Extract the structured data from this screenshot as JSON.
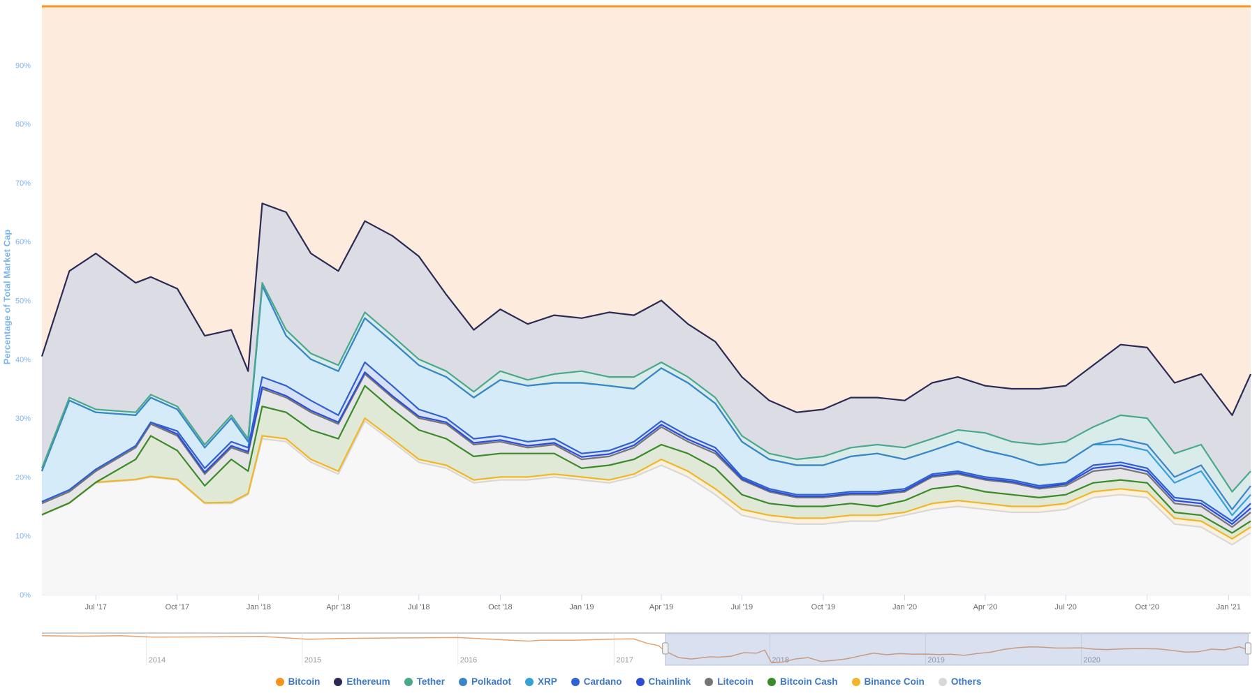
{
  "chart_data": {
    "type": "area",
    "stacking": "percent",
    "title": "",
    "xlabel": "",
    "ylabel": "Percentage of Total Market Cap",
    "ylim": [
      0,
      100
    ],
    "yticks": [
      "0%",
      "10%",
      "20%",
      "30%",
      "40%",
      "50%",
      "60%",
      "70%",
      "80%",
      "90%"
    ],
    "xticks": [
      {
        "date": "2017-07-01",
        "label": "Jul '17"
      },
      {
        "date": "2017-10-01",
        "label": "Oct '17"
      },
      {
        "date": "2018-01-01",
        "label": "Jan '18"
      },
      {
        "date": "2018-04-01",
        "label": "Apr '18"
      },
      {
        "date": "2018-07-01",
        "label": "Jul '18"
      },
      {
        "date": "2018-10-01",
        "label": "Oct '18"
      },
      {
        "date": "2019-01-01",
        "label": "Jan '19"
      },
      {
        "date": "2019-04-01",
        "label": "Apr '19"
      },
      {
        "date": "2019-07-01",
        "label": "Jul '19"
      },
      {
        "date": "2019-10-01",
        "label": "Oct '19"
      },
      {
        "date": "2020-01-01",
        "label": "Jan '20"
      },
      {
        "date": "2020-04-01",
        "label": "Apr '20"
      },
      {
        "date": "2020-07-01",
        "label": "Jul '20"
      },
      {
        "date": "2020-10-01",
        "label": "Oct '20"
      },
      {
        "date": "2021-01-01",
        "label": "Jan '21"
      }
    ],
    "xrange": [
      "2017-05-01",
      "2021-01-26"
    ],
    "legend_position": "bottom-center",
    "grid": true,
    "x": [
      "2017-05-01",
      "2017-06-01",
      "2017-07-01",
      "2017-08-15",
      "2017-09-01",
      "2017-10-01",
      "2017-11-01",
      "2017-12-01",
      "2017-12-20",
      "2018-01-05",
      "2018-02-01",
      "2018-03-01",
      "2018-04-01",
      "2018-05-01",
      "2018-06-01",
      "2018-07-01",
      "2018-08-01",
      "2018-09-01",
      "2018-10-01",
      "2018-11-01",
      "2018-12-01",
      "2019-01-01",
      "2019-02-01",
      "2019-03-01",
      "2019-04-01",
      "2019-05-01",
      "2019-06-01",
      "2019-07-01",
      "2019-08-01",
      "2019-09-01",
      "2019-10-01",
      "2019-11-01",
      "2019-12-01",
      "2020-01-01",
      "2020-02-01",
      "2020-03-01",
      "2020-04-01",
      "2020-05-01",
      "2020-06-01",
      "2020-07-01",
      "2020-08-01",
      "2020-09-01",
      "2020-10-01",
      "2020-11-01",
      "2020-12-01",
      "2021-01-05",
      "2021-01-26"
    ],
    "series": [
      {
        "name": "Bitcoin",
        "color": "#f7931a",
        "fill": "#fdebdd",
        "values": [
          59.5,
          45,
          42,
          47,
          46,
          48,
          56,
          55,
          62,
          33.5,
          35,
          42,
          45,
          36.5,
          39,
          42.5,
          49,
          55,
          51.5,
          54,
          52.5,
          53,
          52,
          52.5,
          50,
          54,
          57,
          63,
          67,
          69,
          68.5,
          66.5,
          66.5,
          67,
          64,
          63,
          64.5,
          65,
          65,
          64.5,
          61,
          57.5,
          58,
          64,
          62.5,
          69.5,
          62.5
        ]
      },
      {
        "name": "Ethereum",
        "color": "#2b2a55",
        "fill": "#dcdce5",
        "values": [
          19,
          21.5,
          26.5,
          22,
          20,
          20,
          18.5,
          14.5,
          11.5,
          13.5,
          20,
          17,
          16,
          15.5,
          17,
          17.5,
          13,
          10.5,
          10.5,
          9.5,
          10,
          9,
          11,
          10.5,
          10.5,
          9,
          9.5,
          10,
          9,
          8,
          8,
          8.5,
          8,
          8,
          9.5,
          9,
          8,
          9,
          9.5,
          9.5,
          10.5,
          12,
          12,
          12,
          12,
          13,
          16.5
        ]
      },
      {
        "name": "Tether",
        "color": "#4aa88c",
        "fill": "#d9ecea",
        "values": [
          0.5,
          0.5,
          0.5,
          0.5,
          0.5,
          0.5,
          0.5,
          0.5,
          0.5,
          0.5,
          1,
          1,
          1,
          1,
          1,
          1,
          1,
          1,
          1.5,
          1,
          1.5,
          2,
          1.5,
          2,
          1,
          1,
          1,
          1,
          1,
          1,
          1.5,
          1.5,
          1.5,
          2,
          2,
          2,
          3,
          2.5,
          3.5,
          3.5,
          3,
          4,
          4.5,
          4,
          3.5,
          3,
          2.5
        ]
      },
      {
        "name": "Polkadot",
        "color": "#3b86c8",
        "fill": "#d5e6f6",
        "values": [
          0,
          0,
          0,
          0,
          0,
          0,
          0,
          0,
          0,
          0,
          0,
          0,
          0,
          0,
          0,
          0,
          0,
          0,
          0,
          0,
          0,
          0,
          0,
          0,
          0,
          0,
          0,
          0,
          0,
          0,
          0,
          0,
          0,
          0,
          0,
          0,
          0,
          0,
          0,
          0,
          0,
          1,
          1,
          1,
          1,
          1,
          1.5
        ]
      },
      {
        "name": "XRP",
        "color": "#36a2d4",
        "fill": "#d6ebf8",
        "values": [
          5.2,
          15.2,
          9.7,
          5.2,
          4.2,
          3.7,
          3.5,
          4,
          1,
          15.5,
          8.5,
          7,
          7.5,
          7.5,
          7.5,
          7.5,
          7,
          7,
          9.5,
          9.5,
          9.5,
          12,
          11,
          9,
          9,
          9,
          7.5,
          6,
          5,
          5,
          5,
          6,
          6.5,
          5,
          4,
          5,
          4.5,
          4,
          3.5,
          3.5,
          3.5,
          3,
          3,
          2.5,
          5,
          1,
          1.5
        ]
      },
      {
        "name": "Cardano",
        "color": "#2f62cf",
        "fill": "#d7e1f5",
        "values": [
          0,
          0,
          0,
          0,
          0,
          0.5,
          0.7,
          0.7,
          0.7,
          1.7,
          1.7,
          1.7,
          1.2,
          1.7,
          1.7,
          1.2,
          0.7,
          0.7,
          0.7,
          0.7,
          0.7,
          0.6,
          0.6,
          0.6,
          0.6,
          0.6,
          0.6,
          0.3,
          0.3,
          0.3,
          0.3,
          0.3,
          0.3,
          0.3,
          0.3,
          0.3,
          0.3,
          0.3,
          0.3,
          0.2,
          0.5,
          0.5,
          0.5,
          0.5,
          0.5,
          0.5,
          0.8
        ]
      },
      {
        "name": "Chainlink",
        "color": "#2a4fd6",
        "fill": "#dcdff5",
        "values": [
          0.3,
          0.3,
          0.3,
          0.3,
          0.3,
          0.3,
          0.3,
          0.3,
          0.3,
          0.3,
          0.3,
          0.3,
          0.3,
          0.3,
          0.3,
          0.3,
          0.3,
          0.3,
          0.3,
          0.3,
          0.3,
          0.4,
          0.4,
          0.4,
          0.4,
          0.4,
          0.4,
          0.2,
          0.2,
          0.2,
          0.2,
          0.2,
          0.2,
          0.2,
          0.2,
          0.2,
          0.2,
          0.2,
          0.2,
          0.3,
          0.5,
          0.5,
          0.5,
          0.5,
          0.5,
          0.5,
          0.7
        ]
      },
      {
        "name": "Litecoin",
        "color": "#767676",
        "fill": "#e6e6e8",
        "values": [
          1.9,
          1.9,
          1.9,
          2,
          2,
          2.5,
          2,
          2,
          3,
          3,
          2.5,
          3,
          2.5,
          2,
          2,
          2,
          2.5,
          2,
          2,
          1,
          1.5,
          1.5,
          1.5,
          2,
          3,
          2,
          2.5,
          2.5,
          2,
          1.5,
          1.5,
          1.5,
          2,
          1.5,
          2,
          2,
          2,
          2,
          1.5,
          1.5,
          2,
          2,
          1.5,
          1.5,
          1.5,
          1,
          1.5
        ]
      },
      {
        "name": "Bitcoin Cash",
        "color": "#3a8a28",
        "fill": "#dfe9d6",
        "values": [
          0,
          0,
          0,
          3.4,
          6.9,
          4.9,
          2.9,
          7.3,
          3.8,
          5,
          4.5,
          5,
          5.5,
          5.5,
          5,
          5,
          4.5,
          4,
          4,
          4,
          3.5,
          1.5,
          2.5,
          2.5,
          2.5,
          3,
          3.5,
          2.5,
          2,
          2,
          2,
          2,
          1.5,
          2,
          2.5,
          2.5,
          2,
          2,
          1.5,
          1.5,
          1.5,
          1.5,
          1.5,
          1,
          1,
          1,
          1
        ]
      },
      {
        "name": "Binance Coin",
        "color": "#f0b52a",
        "fill": "#fbf1dc",
        "values": [
          0.1,
          0.1,
          0.1,
          0.1,
          0.1,
          0.1,
          0.1,
          0.2,
          0.2,
          0.5,
          0.5,
          0.5,
          0.5,
          0.5,
          0.5,
          0.5,
          0.5,
          0.5,
          0.5,
          0.5,
          0.5,
          0.5,
          0.5,
          0.5,
          1,
          1,
          1,
          1,
          1,
          1,
          1,
          1,
          1,
          0.5,
          1,
          1,
          1,
          1,
          1,
          1,
          1,
          1,
          1,
          1,
          1,
          1,
          1
        ]
      },
      {
        "name": "Others",
        "color": "#d8d8d8",
        "fill": "#f7f7f7",
        "values": [
          13.5,
          15.5,
          19,
          19.5,
          20,
          19.5,
          15.5,
          15.5,
          17,
          26.5,
          26,
          22.5,
          20.5,
          29.5,
          26,
          22.5,
          21.5,
          19,
          19.5,
          19.5,
          20,
          19.5,
          19,
          20,
          22,
          20,
          17,
          13.5,
          12.5,
          12,
          12,
          12.5,
          12.5,
          13.5,
          14.5,
          15,
          14.5,
          14,
          14,
          14.5,
          16.5,
          17,
          16.5,
          12,
          11.5,
          8.5,
          10.5
        ]
      }
    ],
    "navigator": {
      "series_name": "Bitcoin",
      "color": "#e8a26a",
      "xrange": [
        "2013-05-01",
        "2021-02-01"
      ],
      "yrange": [
        28,
        100
      ],
      "years": [
        {
          "date": "2014-01-01",
          "label": "2014"
        },
        {
          "date": "2015-01-01",
          "label": "2015"
        },
        {
          "date": "2016-01-01",
          "label": "2016"
        },
        {
          "date": "2017-01-01",
          "label": "2017"
        },
        {
          "date": "2018-01-01",
          "label": "2018"
        },
        {
          "date": "2019-01-01",
          "label": "2019"
        },
        {
          "date": "2020-01-01",
          "label": "2020"
        }
      ],
      "history": [
        [
          "2013-05-01",
          94
        ],
        [
          "2013-08-01",
          93
        ],
        [
          "2013-11-01",
          94
        ],
        [
          "2014-01-15",
          91
        ],
        [
          "2014-06-01",
          91.5
        ],
        [
          "2014-10-01",
          92.5
        ],
        [
          "2015-01-15",
          86
        ],
        [
          "2015-04-01",
          88
        ],
        [
          "2015-08-01",
          89
        ],
        [
          "2016-01-01",
          90
        ],
        [
          "2016-03-01",
          87
        ],
        [
          "2016-06-15",
          82
        ],
        [
          "2016-07-15",
          84
        ],
        [
          "2016-10-01",
          84
        ],
        [
          "2017-01-01",
          86.5
        ],
        [
          "2017-02-15",
          87
        ],
        [
          "2017-03-20",
          77
        ],
        [
          "2017-04-15",
          72
        ]
      ],
      "selected_range": [
        "2017-05-01",
        "2021-01-26"
      ]
    }
  }
}
